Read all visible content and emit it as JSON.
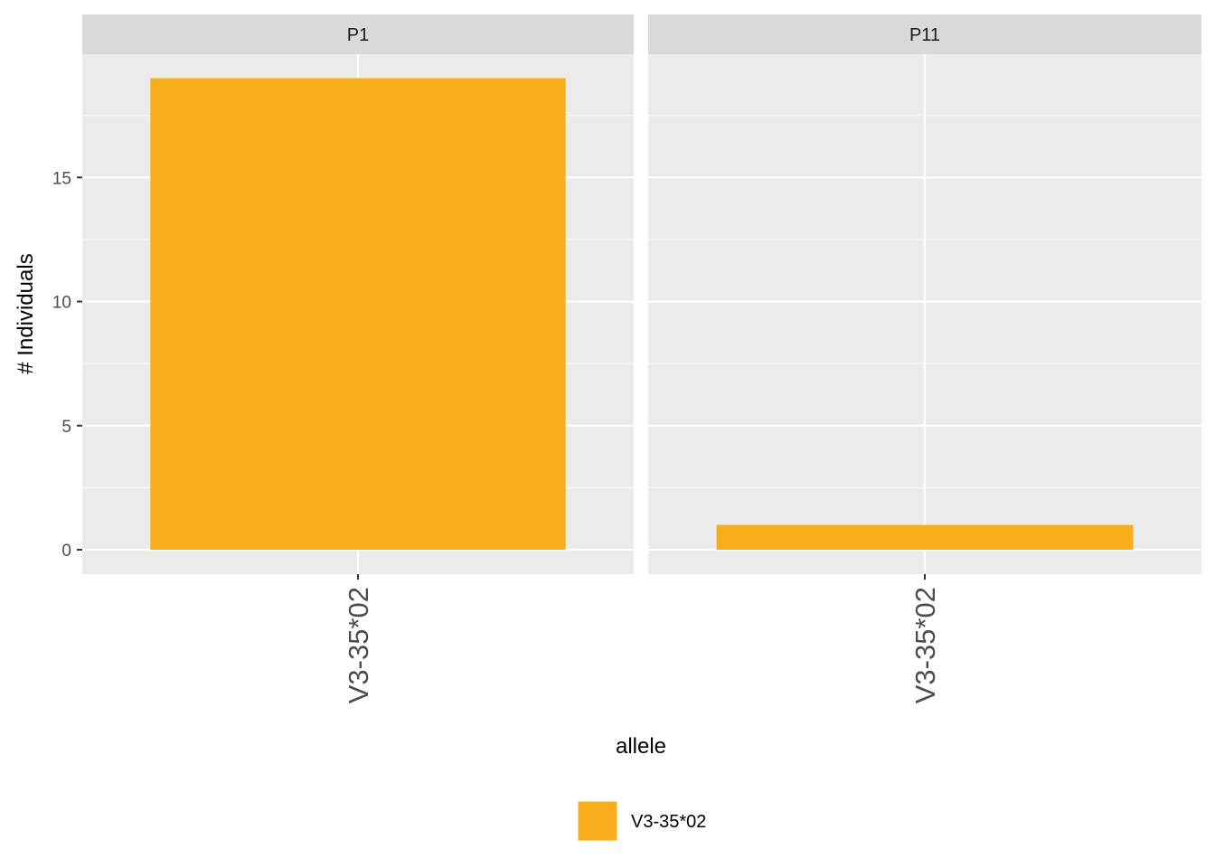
{
  "chart_data": {
    "type": "bar",
    "xlabel": "allele",
    "ylabel": "# Individuals",
    "ylim": [
      0,
      20
    ],
    "y_ticks": [
      0,
      5,
      10,
      15
    ],
    "grid": true,
    "legend_position": "bottom",
    "legend": [
      {
        "label": "V3-35*02",
        "color": "#F8AD1A"
      }
    ],
    "panels": [
      {
        "title": "P1",
        "categories": [
          "V3-35*02"
        ],
        "series": [
          {
            "name": "V3-35*02",
            "values": [
              19
            ],
            "color": "#F8AD1A"
          }
        ]
      },
      {
        "title": "P11",
        "categories": [
          "V3-35*02"
        ],
        "series": [
          {
            "name": "V3-35*02",
            "values": [
              1
            ],
            "color": "#F8AD1A"
          }
        ]
      }
    ]
  }
}
